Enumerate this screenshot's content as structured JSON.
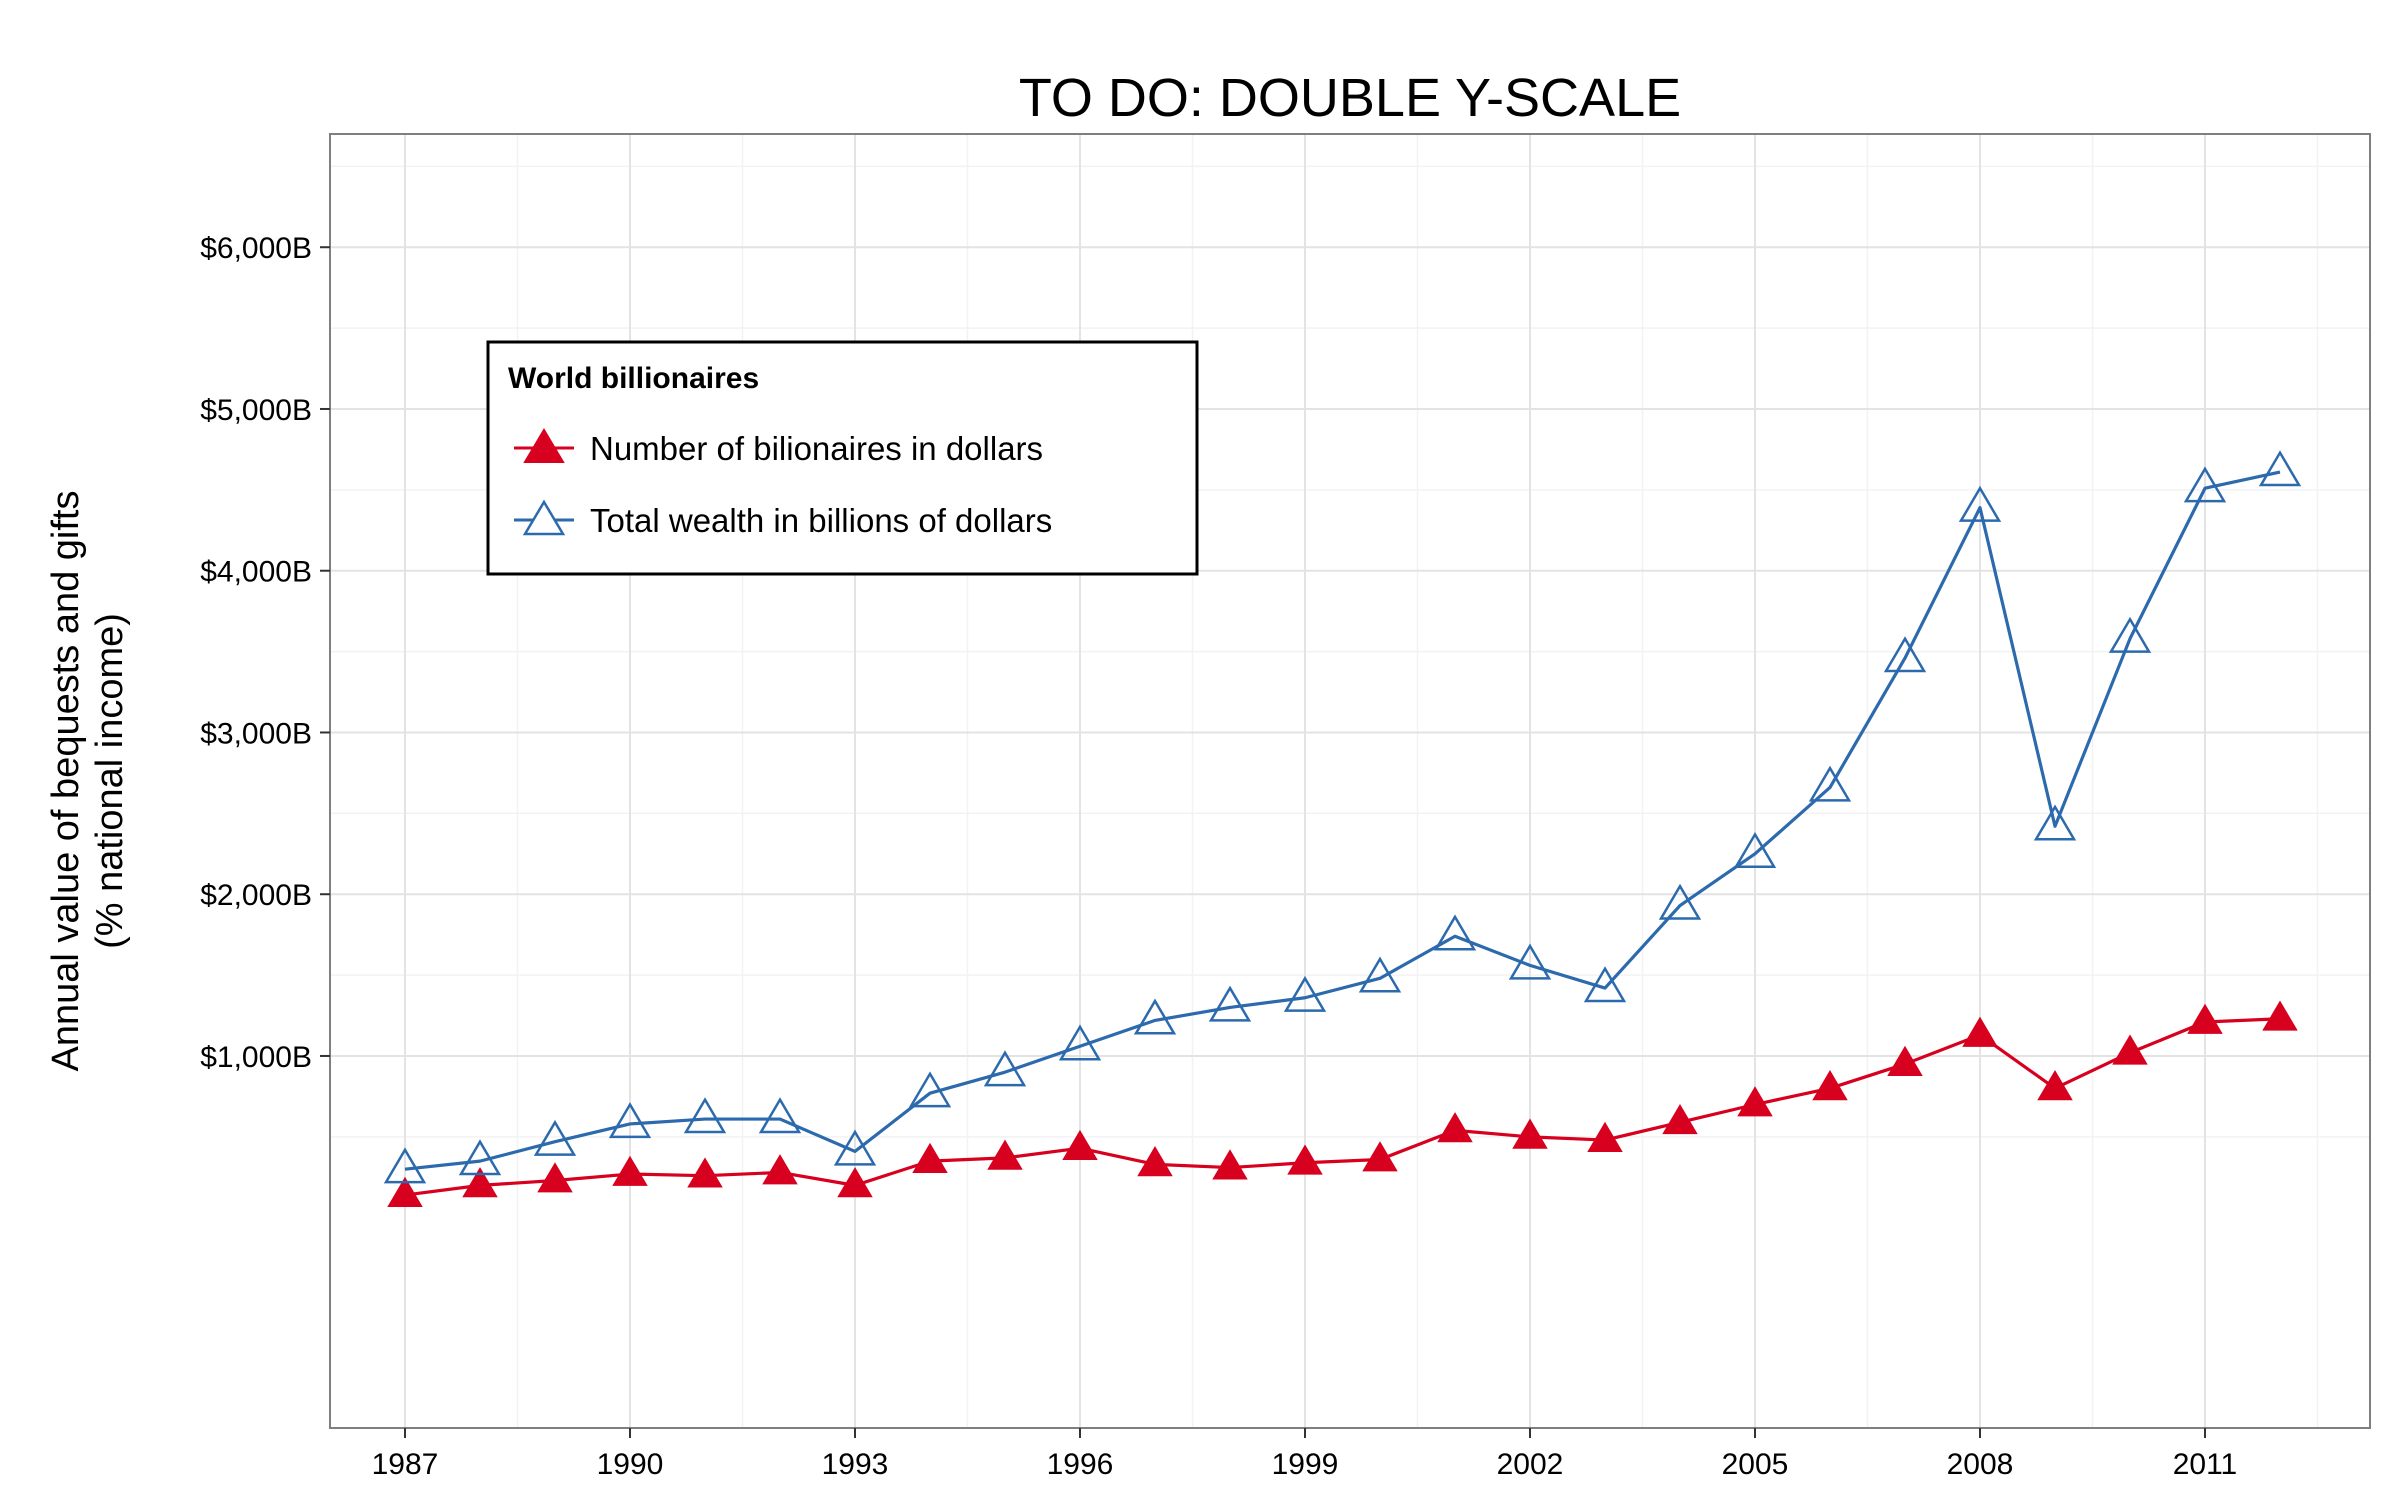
{
  "chart_data": {
    "type": "line",
    "title": "TO DO: DOUBLE Y-SCALE",
    "ylabel_line1": "Annual value of bequests and gifts",
    "ylabel_line2": "(% national income)",
    "xlim": [
      1986,
      2013.2
    ],
    "ylim": [
      -1300,
      6700
    ],
    "x_ticks": [
      1987,
      1990,
      1993,
      1996,
      1999,
      2002,
      2005,
      2008,
      2011
    ],
    "x_tick_labels": [
      "1987",
      "1990",
      "1993",
      "1996",
      "1999",
      "2002",
      "2005",
      "2008",
      "2011"
    ],
    "y_ticks": [
      1000,
      2000,
      3000,
      4000,
      5000,
      6000
    ],
    "y_tick_labels": [
      "$1,000B",
      "$2,000B",
      "$3,000B",
      "$4,000B",
      "$5,000B",
      "$6,000B"
    ],
    "grid": true,
    "legend": {
      "title": "World billionaires",
      "placement": "top-left"
    },
    "x": [
      1987,
      1988,
      1989,
      1990,
      1991,
      1992,
      1993,
      1994,
      1995,
      1996,
      1997,
      1998,
      1999,
      2000,
      2001,
      2002,
      2003,
      2004,
      2005,
      2006,
      2007,
      2008,
      2009,
      2010,
      2011,
      2012
    ],
    "series": [
      {
        "name": "Number of bilionaires in dollars",
        "color": "#d7001e",
        "marker": "filled-triangle",
        "values": [
          140,
          200,
          230,
          270,
          260,
          280,
          200,
          350,
          370,
          430,
          330,
          310,
          340,
          360,
          540,
          500,
          480,
          590,
          700,
          800,
          950,
          1130,
          800,
          1020,
          1210,
          1230
        ]
      },
      {
        "name": "Total wealth in billions of dollars",
        "color": "#2c6aad",
        "marker": "open-triangle",
        "values": [
          300,
          350,
          470,
          580,
          610,
          610,
          410,
          770,
          900,
          1060,
          1220,
          1300,
          1360,
          1480,
          1740,
          1560,
          1420,
          1930,
          2250,
          2660,
          3460,
          4390,
          2420,
          3580,
          4510,
          4610
        ]
      }
    ]
  }
}
